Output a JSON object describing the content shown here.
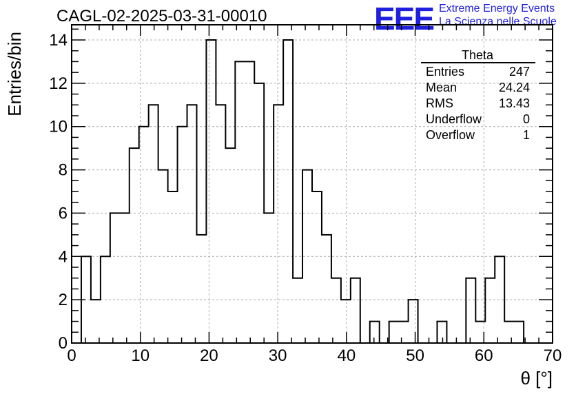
{
  "header": {
    "title": "CAGL-02-2025-03-31-00010",
    "logo_mark": "EEE",
    "logo_line1": "Extreme Energy Events",
    "logo_line2": "La Scienza nelle Scuole"
  },
  "stats": {
    "name": "Theta",
    "rows": [
      {
        "label": "Entries",
        "value": "247"
      },
      {
        "label": "Mean",
        "value": "24.24"
      },
      {
        "label": "RMS",
        "value": "13.43"
      },
      {
        "label": "Underflow",
        "value": "0"
      },
      {
        "label": "Overflow",
        "value": "1"
      }
    ]
  },
  "chart_data": {
    "type": "bar",
    "histogram": true,
    "bin_width": 1.4,
    "x": [
      0.7,
      2.1,
      3.5,
      4.9,
      6.3,
      7.7,
      9.1,
      10.5,
      11.9,
      13.3,
      14.7,
      16.1,
      17.5,
      18.9,
      20.3,
      21.7,
      23.1,
      24.5,
      25.9,
      27.3,
      28.7,
      30.1,
      31.5,
      32.9,
      34.3,
      35.7,
      37.1,
      38.5,
      39.9,
      41.3,
      42.7,
      44.1,
      45.5,
      46.9,
      48.3,
      49.7,
      51.1,
      52.5,
      53.9,
      55.3,
      56.7,
      58.1,
      59.5,
      60.9,
      62.3,
      63.7,
      65.1,
      66.5,
      67.9,
      69.3
    ],
    "values": [
      0,
      4,
      2,
      4,
      6,
      6,
      9,
      10,
      11,
      8,
      7,
      10,
      11,
      5,
      14,
      11,
      9,
      13,
      13,
      12,
      6,
      11,
      14,
      3,
      8,
      7,
      5,
      3,
      2,
      3,
      0,
      1,
      0,
      1,
      1,
      2,
      0,
      0,
      1,
      0,
      0,
      3,
      1,
      3,
      4,
      1,
      1,
      0,
      0,
      0
    ],
    "xlabel": "θ [°]",
    "ylabel": "Entries/bin",
    "xlim": [
      0,
      70
    ],
    "ylim": [
      0,
      14.7
    ],
    "x_ticks": [
      0,
      10,
      20,
      30,
      40,
      50,
      60,
      70
    ],
    "y_ticks": [
      0,
      2,
      4,
      6,
      8,
      10,
      12,
      14
    ],
    "grid": true,
    "legend": "top-right"
  }
}
